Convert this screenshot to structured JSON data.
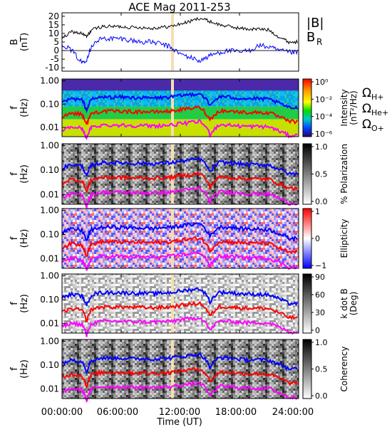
{
  "title": "ACE Mag 2011-253",
  "x_axis": {
    "label": "Time (UT)",
    "ticks": [
      "00:00:00",
      "06:00:00",
      "12:00:00",
      "18:00:00",
      "24:00:00"
    ],
    "range_hours": [
      0,
      24
    ]
  },
  "colors": {
    "B_total": "#000000",
    "B_R": "#0000ff",
    "omega_H": "#0000ff",
    "omega_He": "#ff0000",
    "omega_O": "#ff00ff",
    "data_gap": "#f5deb3"
  },
  "panels": [
    {
      "id": "mag",
      "ylabel_line1": "B",
      "ylabel_line2": "(nT)",
      "ytick_labels": [
        "20",
        "15",
        "10",
        "5",
        "0",
        "-5",
        "-10"
      ],
      "legend": [
        {
          "label_main": "|B|",
          "label_sub": "",
          "color": "#000000"
        },
        {
          "label_main": "B",
          "label_sub": "R",
          "color": "#0000ff"
        }
      ]
    },
    {
      "id": "intensity",
      "ylabel_line1": "f",
      "ylabel_line2": "(Hz)",
      "ytick_labels": [
        "1.00",
        "0.10",
        "0.01"
      ],
      "colorbar": {
        "scale": "spectrum",
        "title_line1": "Intensity",
        "title_line2": "(nT²/Hz)",
        "tick_labels": [
          "10⁰",
          "10⁻²",
          "10⁻⁴",
          "10⁻⁶"
        ]
      },
      "legend": [
        {
          "label_main": "Ω",
          "label_sub": "H+",
          "color": "#0000ff"
        },
        {
          "label_main": "Ω",
          "label_sub": "He+",
          "color": "#ff0000"
        },
        {
          "label_main": "Ω",
          "label_sub": "O+",
          "color": "#ff00ff"
        }
      ]
    },
    {
      "id": "polarization",
      "ylabel_line1": "f",
      "ylabel_line2": "(Hz)",
      "ytick_labels": [
        "1.00",
        "0.10",
        "0.01"
      ],
      "colorbar": {
        "scale": "gray",
        "title_line1": "% Polarization",
        "title_line2": "",
        "tick_labels": [
          "1.0",
          "0.5",
          "0.0"
        ]
      }
    },
    {
      "id": "ellipticity",
      "ylabel_line1": "f",
      "ylabel_line2": "(Hz)",
      "ytick_labels": [
        "1.00",
        "0.10",
        "0.01"
      ],
      "colorbar": {
        "scale": "bwr",
        "title_line1": "Ellipticity",
        "title_line2": "",
        "tick_labels": [
          "1",
          "0",
          "−1"
        ]
      }
    },
    {
      "id": "kdotb",
      "ylabel_line1": "f",
      "ylabel_line2": "(Hz)",
      "ytick_labels": [
        "1.00",
        "0.10",
        "0.01"
      ],
      "colorbar": {
        "scale": "gray",
        "title_line1": "k dot B",
        "title_line2": "(Deg)",
        "tick_labels": [
          "90",
          "60",
          "30",
          "0"
        ]
      }
    },
    {
      "id": "coherency",
      "ylabel_line1": "f",
      "ylabel_line2": "(Hz)",
      "ytick_labels": [
        "1.00",
        "0.10",
        "0.01"
      ],
      "colorbar": {
        "scale": "gray",
        "title_line1": "Coherency",
        "title_line2": "",
        "tick_labels": [
          "1.0",
          "0.5",
          "0.0"
        ]
      }
    }
  ],
  "chart_data": [
    {
      "type": "line",
      "panel": "mag",
      "x_unit": "hours UT",
      "x": [
        0,
        1,
        2,
        2.5,
        3,
        4,
        5,
        6,
        7,
        8,
        9,
        10,
        11,
        12,
        13,
        14,
        15,
        16,
        17,
        18,
        19,
        20,
        21,
        22,
        23,
        24
      ],
      "ylim": [
        -12,
        22
      ],
      "series": [
        {
          "name": "|B|",
          "values": [
            7,
            11,
            10,
            8,
            12,
            14,
            14,
            14,
            13.5,
            13.5,
            13,
            13.5,
            14,
            15.5,
            17,
            19,
            17,
            15,
            14,
            13,
            12.5,
            12.5,
            12,
            8,
            5,
            5
          ]
        },
        {
          "name": "B_R",
          "values": [
            4,
            0,
            -7,
            -5,
            3,
            7,
            7,
            7,
            6,
            5,
            5,
            4,
            2,
            -2,
            -4,
            -6,
            -3,
            -1,
            0,
            -1,
            0,
            3,
            2,
            0,
            -1,
            -1
          ]
        }
      ]
    },
    {
      "type": "line",
      "panel": "frequency panels (identical overlays in each)",
      "x_unit": "hours UT",
      "yscale": "log",
      "ylim": [
        0.004,
        1.2
      ],
      "x": [
        0,
        1,
        2,
        2.5,
        3,
        4,
        5,
        6,
        7,
        8,
        9,
        10,
        11,
        12,
        13,
        14,
        15,
        16,
        17,
        18,
        19,
        20,
        21,
        22,
        23,
        24
      ],
      "series": [
        {
          "name": "Ω_H+",
          "values": [
            0.12,
            0.17,
            0.15,
            0.05,
            0.16,
            0.2,
            0.2,
            0.2,
            0.19,
            0.19,
            0.18,
            0.19,
            0.2,
            0.23,
            0.26,
            0.29,
            0.08,
            0.21,
            0.2,
            0.18,
            0.17,
            0.17,
            0.16,
            0.11,
            0.07,
            0.07
          ]
        },
        {
          "name": "Ω_He+",
          "values": [
            0.03,
            0.042,
            0.037,
            0.012,
            0.04,
            0.05,
            0.05,
            0.05,
            0.048,
            0.048,
            0.046,
            0.048,
            0.05,
            0.058,
            0.065,
            0.072,
            0.02,
            0.052,
            0.05,
            0.046,
            0.044,
            0.044,
            0.042,
            0.028,
            0.018,
            0.018
          ]
        },
        {
          "name": "Ω_O+",
          "values": [
            0.0075,
            0.0105,
            0.0093,
            0.003,
            0.01,
            0.0125,
            0.0125,
            0.0125,
            0.012,
            0.012,
            0.0115,
            0.012,
            0.0125,
            0.0145,
            0.016,
            0.018,
            0.005,
            0.013,
            0.0125,
            0.0115,
            0.011,
            0.011,
            0.0105,
            0.007,
            0.0045,
            0.0045
          ]
        }
      ]
    }
  ]
}
